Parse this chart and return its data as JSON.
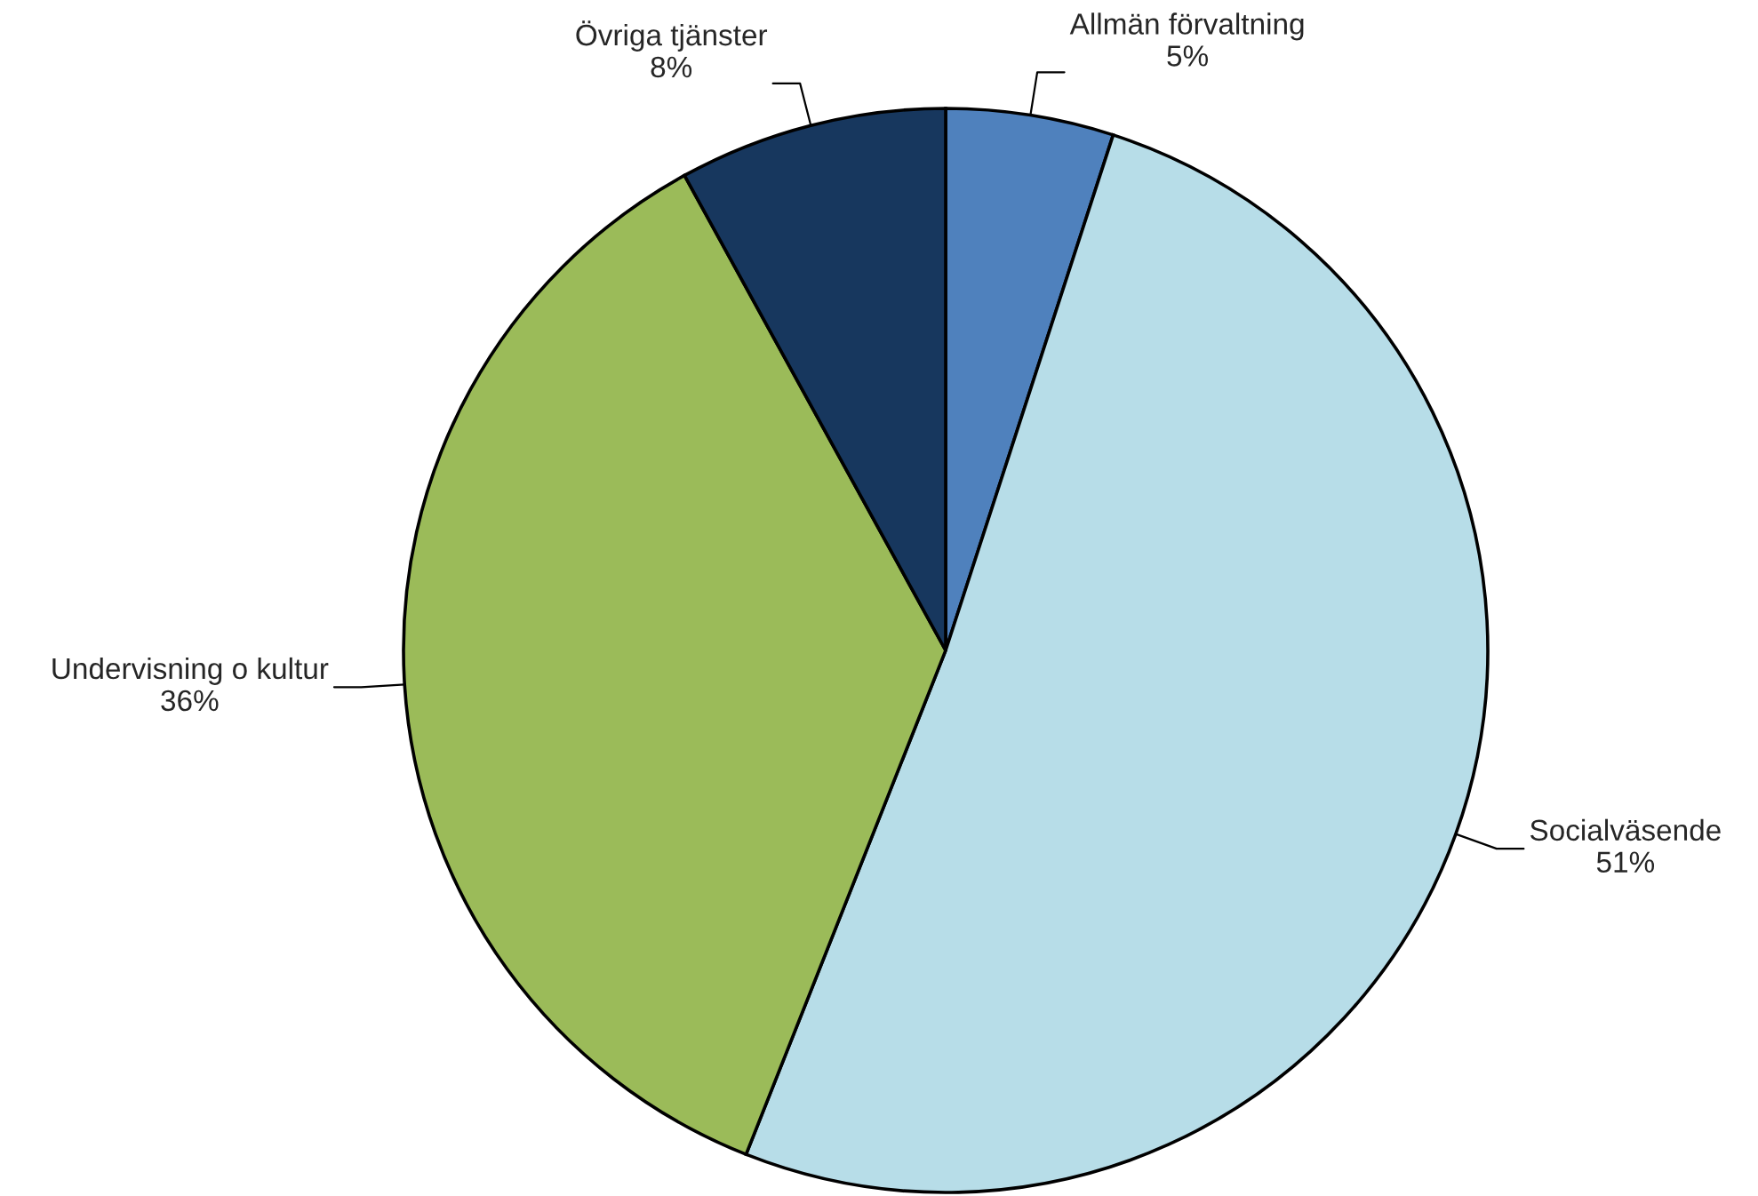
{
  "chart_data": {
    "type": "pie",
    "categories": [
      "Allmän förvaltning",
      "Socialväsende",
      "Undervisning o kultur",
      "Övriga tjänster"
    ],
    "values": [
      5,
      51,
      36,
      8
    ],
    "value_labels": [
      "5%",
      "51%",
      "36%",
      "8%"
    ],
    "colors": [
      "#4f81bd",
      "#b7dde8",
      "#9bbb59",
      "#17375e"
    ],
    "legend": false
  }
}
